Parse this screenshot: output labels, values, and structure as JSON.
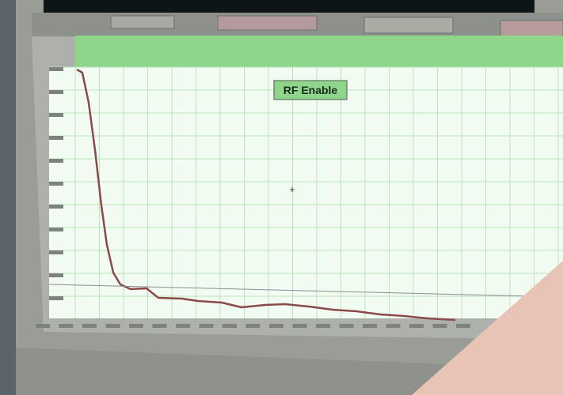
{
  "screen": {
    "plot": {
      "label": "RF Enable"
    }
  }
}
